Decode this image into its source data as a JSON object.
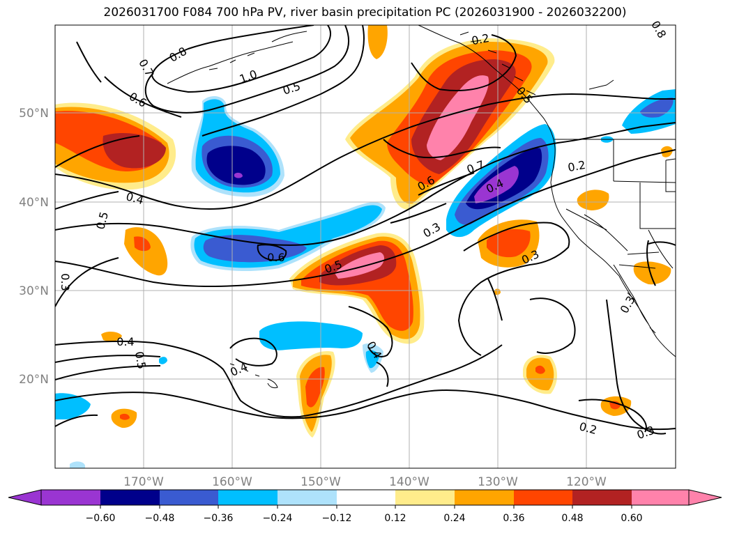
{
  "title": "2026031700 F084 700 hPa PV, river basin precipitation PC (2026031900 - 2026032200)",
  "longitude_ticks": [
    "170°W",
    "160°W",
    "150°W",
    "140°W",
    "130°W",
    "120°W"
  ],
  "latitude_ticks": [
    "50°N",
    "40°N",
    "30°N",
    "20°N"
  ],
  "contour_labels": [
    "0.8",
    "0.7",
    "0.6",
    "1.0",
    "0.5",
    "0.2",
    "0.4",
    "0.5",
    "0.7",
    "0.6",
    "0.4",
    "0.3",
    "0.3",
    "0.6",
    "0.5",
    "0.2",
    "0.3",
    "0.3",
    "0.4",
    "0.5",
    "0.4",
    "0.4",
    "0.2",
    "0.3",
    "0.5",
    "0.8"
  ],
  "colorbar": {
    "tick_labels": [
      "−0.60",
      "−0.48",
      "−0.36",
      "−0.24",
      "−0.12",
      "0.12",
      "0.24",
      "0.36",
      "0.48",
      "0.60"
    ],
    "colors": [
      "#9a35d2",
      "#00008b",
      "#3a5bd1",
      "#00bfff",
      "#aee2fb",
      "#ffffff",
      "#ffec8b",
      "#ffa500",
      "#ff4500",
      "#b22222",
      "#ff82ab",
      "#ff82ab"
    ]
  }
}
